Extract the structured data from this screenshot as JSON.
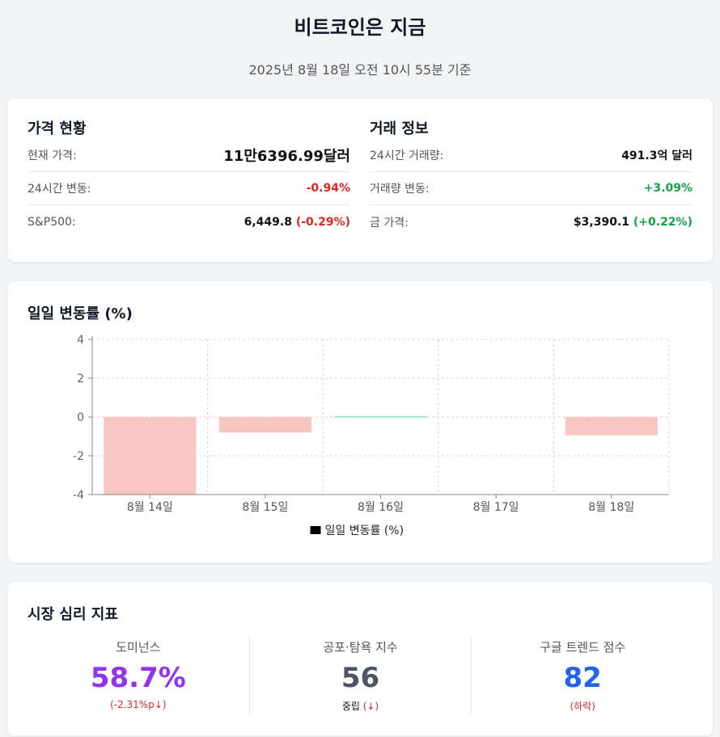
{
  "page": {
    "title": "비트코인은 지금",
    "subtitle": "2025년 8월 18일 오전 10시 55분 기준"
  },
  "price": {
    "title": "가격 현황",
    "rows": [
      {
        "label": "현재 가격:",
        "value": "11만6396.99달러"
      },
      {
        "label": "24시간 변동:",
        "value": "-0.94%"
      },
      {
        "label": "S&P500:",
        "value": "6,449.8",
        "change": "(-0.29%)"
      }
    ]
  },
  "trade": {
    "title": "거래 정보",
    "rows": [
      {
        "label": "24시간 거래량:",
        "value": "491.3억 달러"
      },
      {
        "label": "거래량 변동:",
        "value": "+3.09%"
      },
      {
        "label": "금 가격:",
        "value": "$3,390.1",
        "change": "(+0.22%)"
      }
    ]
  },
  "chart_data": {
    "type": "bar",
    "title": "일일 변동률 (%)",
    "categories": [
      "8월 14일",
      "8월 15일",
      "8월 16일",
      "8월 17일",
      "8월 18일"
    ],
    "series": [
      {
        "name": "일일 변동률 (%)",
        "values": [
          -4.0,
          -0.8,
          0.05,
          0.0,
          -0.94
        ]
      }
    ],
    "ylim": [
      -4,
      4
    ],
    "yticks": [
      4,
      2,
      0,
      -2,
      -4
    ],
    "grid": true,
    "legend": "bottom",
    "colors": {
      "negative": "#f8c6c1",
      "positive": "#a7e0c4",
      "legend_swatch": "#000000"
    }
  },
  "sentiment": {
    "title": "시장 심리 지표",
    "metrics": [
      {
        "label": "도미넌스",
        "value": "58.7%",
        "sub": "(-2.31%p↓)"
      },
      {
        "label": "공포·탐욕 지수",
        "value": "56",
        "sub_main": "중립",
        "sub_extra": "(↓)"
      },
      {
        "label": "구글 트렌드 점수",
        "value": "82",
        "sub": "(하락)"
      }
    ]
  }
}
